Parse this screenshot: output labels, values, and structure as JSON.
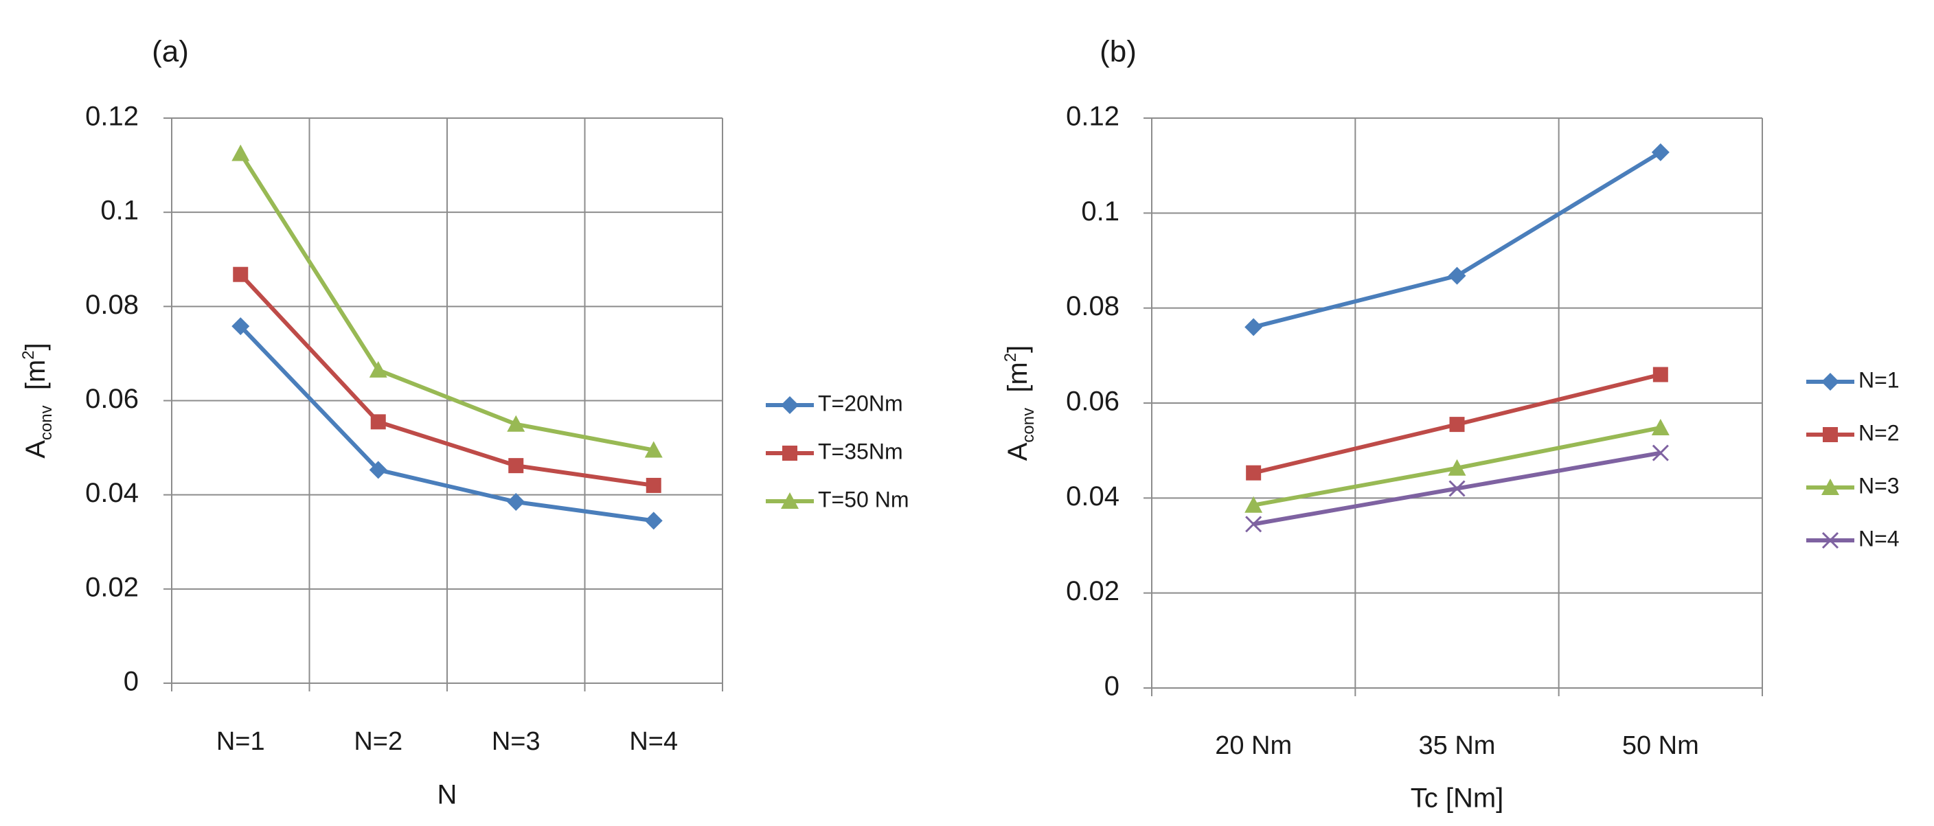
{
  "chart_data": [
    {
      "type": "line",
      "panel_label": "(a)",
      "title": "",
      "xlabel": "N",
      "ylabel_main": "A",
      "ylabel_sub": "conv",
      "ylabel_unit_open": "[m",
      "ylabel_unit_sup": "2",
      "ylabel_unit_close": "]",
      "categories": [
        "N=1",
        "N=2",
        "N=3",
        "N=4"
      ],
      "ylim": [
        0,
        0.12
      ],
      "yticks": [
        "0",
        "0.02",
        "0.04",
        "0.06",
        "0.08",
        "0.1",
        "0.12"
      ],
      "grid": true,
      "legend_position": "right",
      "series": [
        {
          "name": "T=20Nm",
          "color": "#4a7ebb",
          "marker": "diamond",
          "values": [
            0.0758,
            0.0453,
            0.0385,
            0.0345
          ]
        },
        {
          "name": "T=35Nm",
          "color": "#be4b48",
          "marker": "square",
          "values": [
            0.0868,
            0.0555,
            0.0462,
            0.042
          ]
        },
        {
          "name": "T=50 Nm",
          "color": "#98b954",
          "marker": "triangle",
          "values": [
            0.1125,
            0.0665,
            0.055,
            0.0495
          ]
        }
      ]
    },
    {
      "type": "line",
      "panel_label": "(b)",
      "title": "",
      "xlabel": "Tc [Nm]",
      "ylabel_main": "A",
      "ylabel_sub": "conv",
      "ylabel_unit_open": "[m",
      "ylabel_unit_sup": "2",
      "ylabel_unit_close": "]",
      "categories": [
        "20 Nm",
        "35 Nm",
        "50 Nm"
      ],
      "ylim": [
        0,
        0.12
      ],
      "yticks": [
        "0",
        "0.02",
        "0.04",
        "0.06",
        "0.08",
        "0.1",
        "0.12"
      ],
      "grid": true,
      "legend_position": "right",
      "series": [
        {
          "name": "N=1",
          "color": "#4a7ebb",
          "marker": "diamond",
          "values": [
            0.076,
            0.0868,
            0.1128
          ]
        },
        {
          "name": "N=2",
          "color": "#be4b48",
          "marker": "square",
          "values": [
            0.0453,
            0.0555,
            0.066
          ]
        },
        {
          "name": "N=3",
          "color": "#98b954",
          "marker": "triangle",
          "values": [
            0.0385,
            0.0463,
            0.0548
          ]
        },
        {
          "name": "N=4",
          "color": "#7e62a1",
          "marker": "x",
          "values": [
            0.0345,
            0.042,
            0.0495
          ]
        }
      ]
    }
  ]
}
